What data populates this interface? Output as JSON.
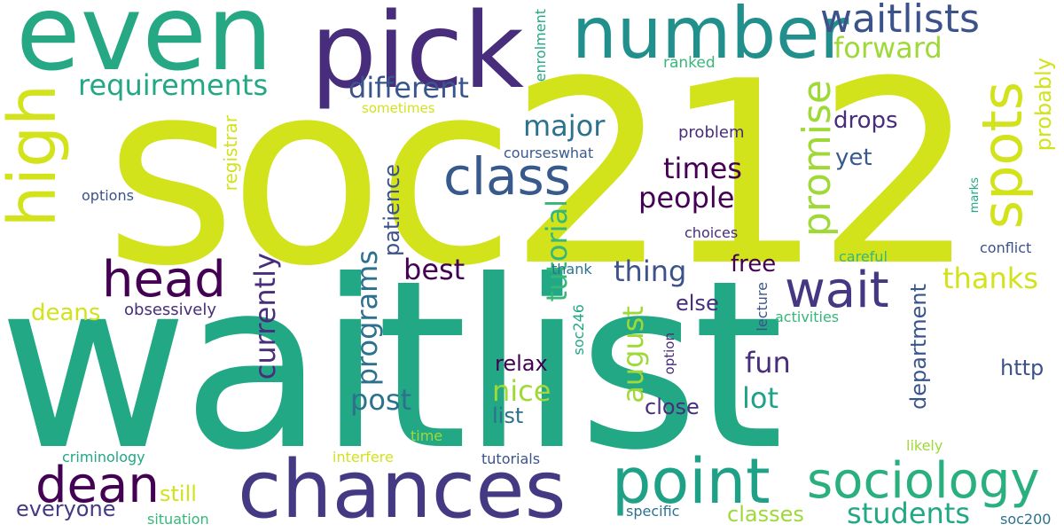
{
  "colors": {
    "background": "#ffffff",
    "c_yellow": "#d2e21b",
    "c_lime": "#9fd938",
    "c_green": "#4ac16d",
    "c_teal": "#22a884",
    "c_cyan": "#1e9b8a",
    "c_blue": "#2c728e",
    "c_indigo": "#3b528b",
    "c_violet": "#472d7b",
    "c_purple": "#440154"
  },
  "words": [
    "soc212",
    "waitlist",
    "even",
    "pick",
    "number",
    "waitlists",
    "chances",
    "point",
    "high",
    "spots",
    "promise",
    "class",
    "head",
    "wait",
    "sociology",
    "dean",
    "requirements",
    "different",
    "forward",
    "major",
    "times",
    "people",
    "students",
    "drops",
    "yet",
    "thing",
    "currently",
    "programs",
    "tutorial",
    "best",
    "deans",
    "free",
    "august",
    "nice",
    "fun",
    "post",
    "lot",
    "relax",
    "list",
    "else",
    "close",
    "http",
    "department",
    "patience",
    "registrar",
    "probably",
    "everyone",
    "still",
    "classes",
    "thanks",
    "problem",
    "enrolment",
    "ranked",
    "sometimes",
    "courseswhat",
    "options",
    "choices",
    "careful",
    "conflict",
    "thank",
    "obsessively",
    "activities",
    "lecture",
    "option",
    "soc246",
    "criminology",
    "interfere",
    "time",
    "tutorials",
    "likely",
    "situation",
    "specific",
    "soc200",
    "marks"
  ]
}
